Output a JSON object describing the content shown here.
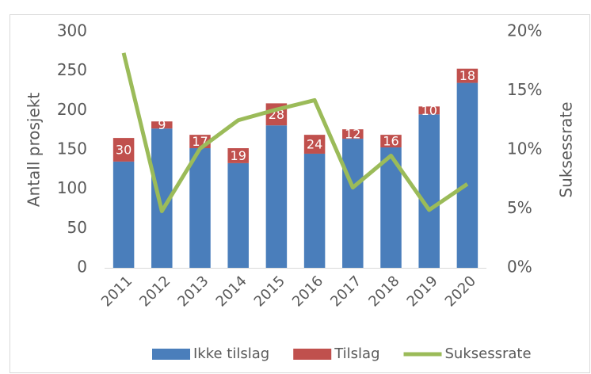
{
  "chart_data": {
    "type": "bar",
    "categories": [
      "2011",
      "2012",
      "2013",
      "2014",
      "2015",
      "2016",
      "2017",
      "2018",
      "2019",
      "2020"
    ],
    "series": [
      {
        "name": "Ikke tilslag",
        "color": "#4a7ebb",
        "values": [
          135,
          177,
          152,
          133,
          181,
          145,
          164,
          153,
          195,
          235
        ]
      },
      {
        "name": "Tilslag",
        "color": "#c0504d",
        "values": [
          30,
          9,
          17,
          19,
          28,
          24,
          12,
          16,
          10,
          18
        ]
      },
      {
        "name": "Suksessrate",
        "color": "#9bbb59",
        "type": "line",
        "axis": "y2",
        "values": [
          18.2,
          4.8,
          10.1,
          12.5,
          13.4,
          14.2,
          6.8,
          9.5,
          4.9,
          7.1
        ]
      }
    ],
    "ylabel": "Antall prosjekt",
    "y2label": "Suksessrate",
    "ylim": [
      0,
      300
    ],
    "yticks": [
      0,
      50,
      100,
      150,
      200,
      250,
      300
    ],
    "y2lim": [
      0,
      20
    ],
    "y2ticks": [
      {
        "value": 0,
        "label": "0%"
      },
      {
        "value": 5,
        "label": "5%"
      },
      {
        "value": 10,
        "label": "10%"
      },
      {
        "value": 15,
        "label": "15%"
      },
      {
        "value": 20,
        "label": "20%"
      }
    ],
    "stacked": true,
    "legend": "bottom",
    "grid": false
  }
}
